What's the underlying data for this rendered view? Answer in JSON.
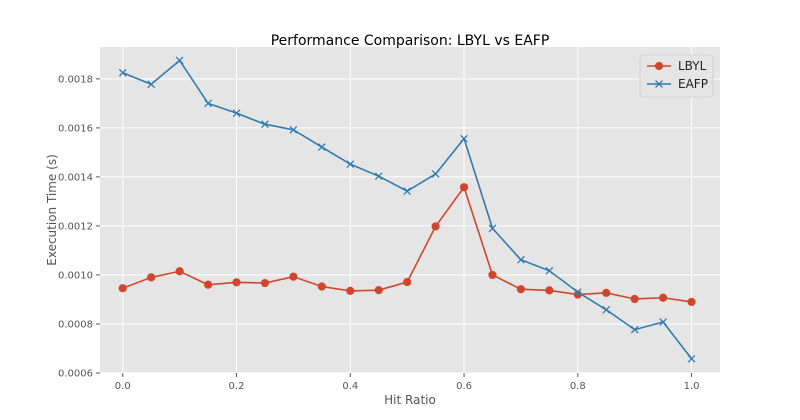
{
  "chart_data": {
    "type": "line",
    "title": "Performance Comparison: LBYL vs EAFP",
    "xlabel": "Hit Ratio",
    "ylabel": "Execution Time (s)",
    "xlim": [
      -0.04,
      1.05
    ],
    "ylim": [
      0.0006,
      0.00193
    ],
    "x_ticks": [
      0.0,
      0.2,
      0.4,
      0.6,
      0.8,
      1.0
    ],
    "x_tick_labels": [
      "0.0",
      "0.2",
      "0.4",
      "0.6",
      "0.8",
      "1.0"
    ],
    "y_ticks": [
      0.0006,
      0.0008,
      0.001,
      0.0012,
      0.0014,
      0.0016,
      0.0018
    ],
    "y_tick_labels": [
      "0.0006",
      "0.0008",
      "0.0010",
      "0.0012",
      "0.0014",
      "0.0016",
      "0.0018"
    ],
    "grid": true,
    "legend_position": "top-right",
    "x": [
      0.0,
      0.05,
      0.1,
      0.15,
      0.2,
      0.25,
      0.3,
      0.35,
      0.4,
      0.45,
      0.5,
      0.55,
      0.6,
      0.65,
      0.7,
      0.75,
      0.8,
      0.85,
      0.9,
      0.95,
      1.0
    ],
    "series": [
      {
        "name": "LBYL",
        "color": "#d0462c",
        "marker": "circle",
        "values": [
          0.000946,
          0.00099,
          0.001015,
          0.00096,
          0.00097,
          0.000967,
          0.000993,
          0.000953,
          0.000935,
          0.000938,
          0.000971,
          0.001198,
          0.001358,
          0.001,
          0.000942,
          0.000937,
          0.00092,
          0.000927,
          0.000902,
          0.000907,
          0.00089
        ]
      },
      {
        "name": "EAFP",
        "color": "#2f7bb0",
        "marker": "x",
        "values": [
          0.001825,
          0.001778,
          0.001875,
          0.0017,
          0.00166,
          0.001615,
          0.001592,
          0.001522,
          0.001452,
          0.001403,
          0.001342,
          0.001412,
          0.001556,
          0.00119,
          0.001062,
          0.001017,
          0.00093,
          0.000858,
          0.000777,
          0.000808,
          0.000658
        ]
      }
    ]
  }
}
